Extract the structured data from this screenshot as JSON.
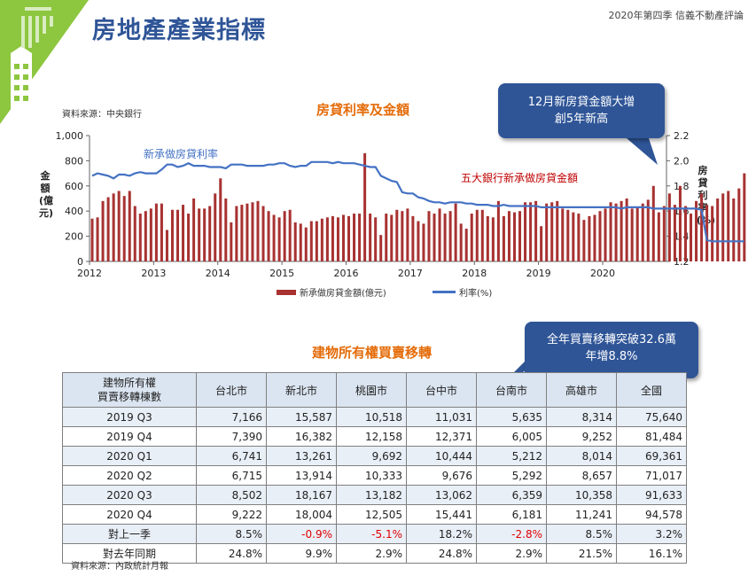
{
  "page": {
    "title": "房地產產業指標",
    "header_right": "2020年第四季  信義不動產評論",
    "source_top": "資料來源：中央銀行",
    "source_bottom": "資料來源：內政統計月報"
  },
  "callouts": {
    "mortgage": [
      "12月新房貸金額大增",
      "創5年新高"
    ],
    "transfer": [
      "全年買賣移轉突破32.6萬",
      "年增8.8%"
    ]
  },
  "chart_data": {
    "type": "bar+line",
    "title": "房貸利率及金額",
    "ylabel_left": "金額(億元)",
    "ylabel_right": "房貸利率(%)",
    "ylim_left": [
      0,
      1000
    ],
    "ylim_right": [
      1.2,
      2.2
    ],
    "yticks_left": [
      "0",
      "200",
      "400",
      "600",
      "800",
      "1,000"
    ],
    "yticks_right": [
      "1.2",
      "1.4",
      "1.6",
      "1.8",
      "2.0",
      "2.2"
    ],
    "xticks": [
      "2012",
      "2013",
      "2014",
      "2015",
      "2016",
      "2017",
      "2018",
      "2019",
      "2020"
    ],
    "start": "2012-01",
    "annotations": {
      "rate": "新承做房貸利率",
      "amount": "五大銀行新承做房貸金額"
    },
    "legend": [
      "新承做房貸金額(億元)",
      "利率(%)"
    ],
    "series": [
      {
        "name": "新承做房貸金額(億元)",
        "type": "bar",
        "values": [
          340,
          350,
          480,
          510,
          540,
          560,
          520,
          560,
          440,
          380,
          400,
          420,
          460,
          460,
          250,
          410,
          410,
          450,
          380,
          500,
          420,
          420,
          440,
          540,
          660,
          500,
          310,
          440,
          450,
          460,
          470,
          480,
          440,
          400,
          370,
          350,
          400,
          410,
          310,
          300,
          270,
          320,
          320,
          340,
          350,
          360,
          350,
          370,
          360,
          380,
          380,
          860,
          380,
          350,
          210,
          380,
          370,
          410,
          400,
          420,
          360,
          320,
          300,
          400,
          380,
          420,
          380,
          400,
          460,
          300,
          260,
          380,
          410,
          410,
          360,
          350,
          480,
          360,
          400,
          390,
          400,
          470,
          470,
          480,
          280,
          460,
          470,
          480,
          420,
          410,
          390,
          380,
          330,
          360,
          370,
          400,
          420,
          470,
          460,
          480,
          500,
          420,
          430,
          460,
          490,
          600,
          390,
          440,
          540,
          450,
          600,
          440,
          380,
          480,
          540,
          450,
          440,
          500,
          540,
          560,
          500,
          580,
          700
        ]
      },
      {
        "name": "利率(%)",
        "type": "line",
        "values": [
          1.88,
          1.9,
          1.89,
          1.88,
          1.86,
          1.89,
          1.89,
          1.88,
          1.9,
          1.91,
          1.9,
          1.9,
          1.9,
          1.93,
          1.97,
          1.97,
          1.95,
          1.96,
          1.98,
          1.96,
          1.96,
          1.96,
          1.95,
          1.95,
          1.95,
          1.94,
          1.97,
          1.97,
          1.97,
          1.96,
          1.96,
          1.96,
          1.96,
          1.97,
          1.97,
          1.98,
          1.98,
          1.96,
          1.95,
          1.96,
          1.96,
          1.99,
          1.99,
          1.99,
          1.99,
          1.98,
          1.99,
          1.98,
          1.98,
          1.98,
          1.97,
          1.96,
          1.95,
          1.95,
          1.88,
          1.86,
          1.84,
          1.83,
          1.75,
          1.74,
          1.74,
          1.71,
          1.7,
          1.68,
          1.67,
          1.67,
          1.66,
          1.67,
          1.67,
          1.67,
          1.66,
          1.66,
          1.65,
          1.65,
          1.65,
          1.64,
          1.64,
          1.65,
          1.64,
          1.64,
          1.64,
          1.64,
          1.64,
          1.64,
          1.63,
          1.63,
          1.63,
          1.63,
          1.63,
          1.63,
          1.63,
          1.63,
          1.63,
          1.63,
          1.63,
          1.63,
          1.63,
          1.63,
          1.63,
          1.62,
          1.63,
          1.63,
          1.63,
          1.63,
          1.63,
          1.62,
          1.62,
          1.62,
          1.62,
          1.62,
          1.62,
          1.62,
          1.62,
          1.62,
          1.61,
          1.37,
          1.36,
          1.36,
          1.36,
          1.36,
          1.36,
          1.36,
          1.36
        ]
      }
    ]
  },
  "table": {
    "title": "建物所有權買賣移轉",
    "row_header": [
      "建物所有權",
      "買賣移轉棟數"
    ],
    "columns": [
      "台北市",
      "新北市",
      "桃園市",
      "台中市",
      "台南市",
      "高雄市",
      "全國"
    ],
    "rows": [
      {
        "label": "2019 Q3",
        "values": [
          "7,166",
          "15,587",
          "10,518",
          "11,031",
          "5,635",
          "8,314",
          "75,640"
        ]
      },
      {
        "label": "2019 Q4",
        "values": [
          "7,390",
          "16,382",
          "12,158",
          "12,371",
          "6,005",
          "9,252",
          "81,484"
        ]
      },
      {
        "label": "2020 Q1",
        "values": [
          "6,741",
          "13,261",
          "9,692",
          "10,444",
          "5,212",
          "8,014",
          "69,361"
        ]
      },
      {
        "label": "2020 Q2",
        "values": [
          "6,715",
          "13,914",
          "10,333",
          "9,676",
          "5,292",
          "8,657",
          "71,017"
        ]
      },
      {
        "label": "2020 Q3",
        "values": [
          "8,502",
          "18,167",
          "13,182",
          "13,062",
          "6,359",
          "10,358",
          "91,633"
        ]
      },
      {
        "label": "2020 Q4",
        "values": [
          "9,222",
          "18,004",
          "12,505",
          "15,441",
          "6,181",
          "11,241",
          "94,578"
        ]
      },
      {
        "label": "對上一季",
        "values": [
          "8.5%",
          "-0.9%",
          "-5.1%",
          "18.2%",
          "-2.8%",
          "8.5%",
          "3.2%"
        ]
      },
      {
        "label": "對去年同期",
        "values": [
          "24.8%",
          "9.9%",
          "2.9%",
          "24.8%",
          "2.9%",
          "21.5%",
          "16.1%"
        ]
      }
    ]
  },
  "colors": {
    "title": "#2f5597",
    "section_title": "#e46c0a",
    "bar": "#a83232",
    "line": "#4472c4",
    "rate_label": "#4472c4",
    "amount_label": "#c00000",
    "logo_green": "#8dc63f",
    "callout": "#2f5597",
    "negative": "#e00000"
  }
}
